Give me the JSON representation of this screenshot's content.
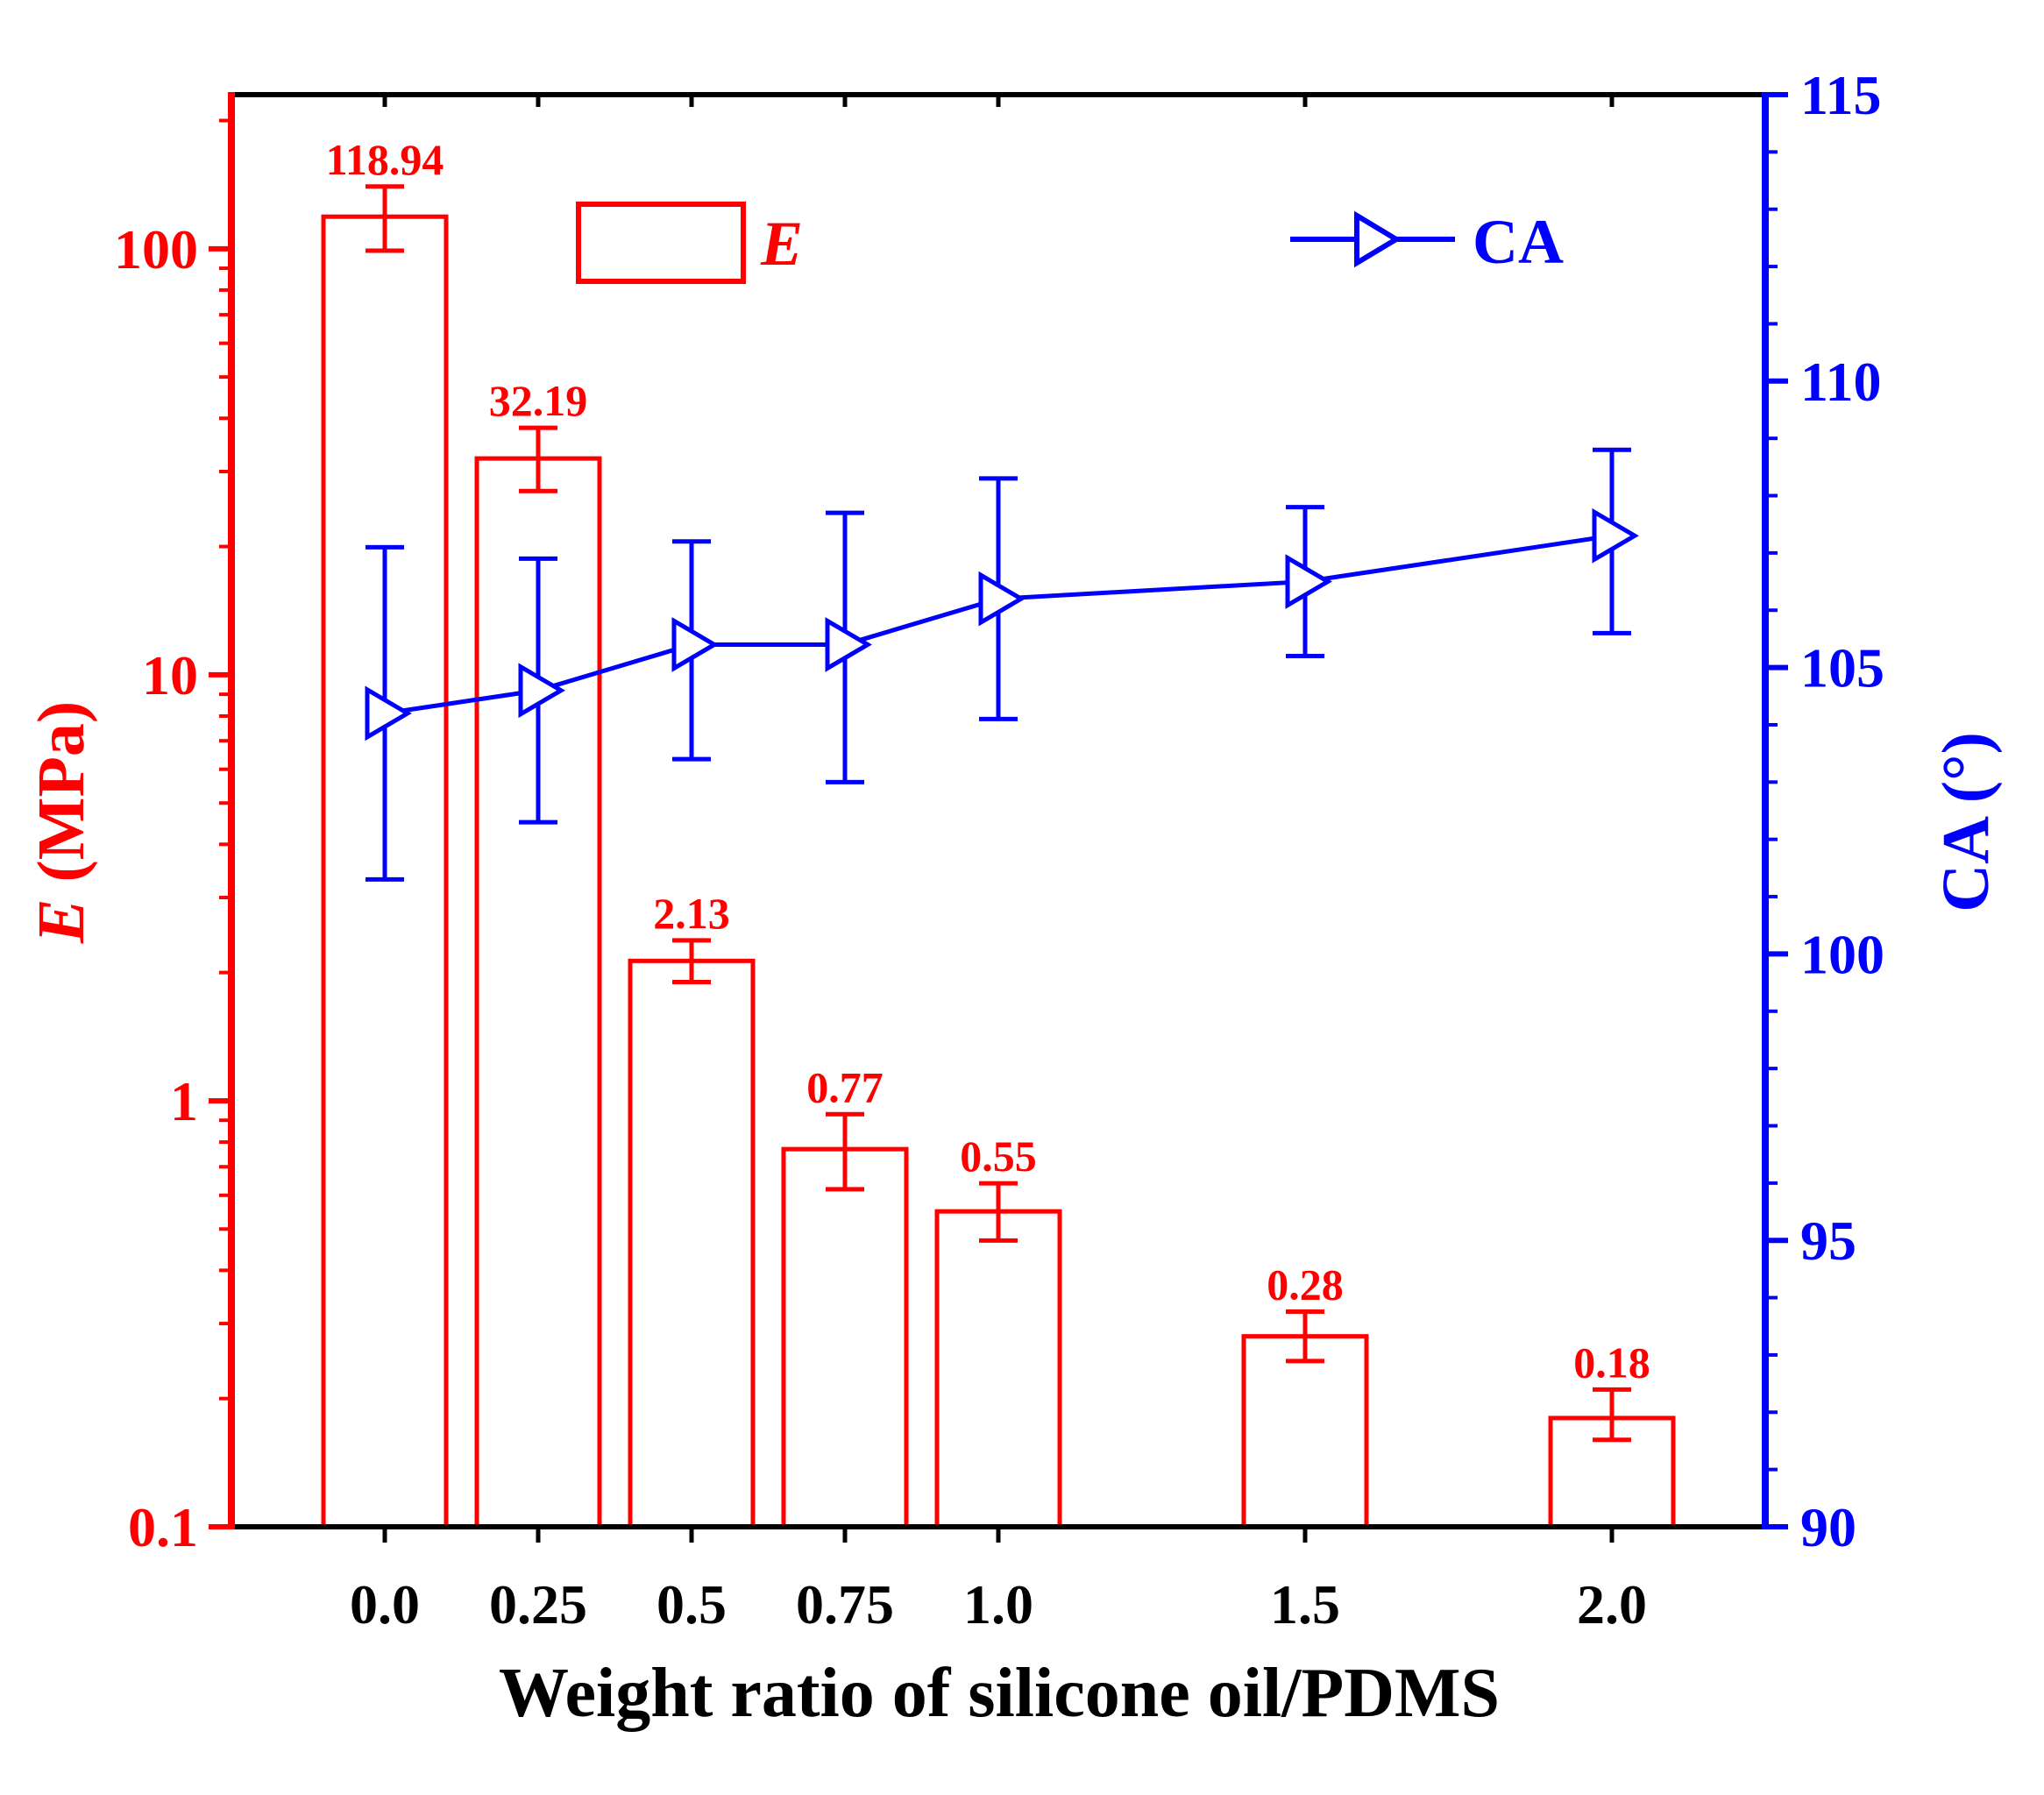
{
  "chart_data": {
    "type": "bar",
    "xlabel": "Weight ratio of silicone oil/PDMS",
    "categories": [
      "0.0",
      "0.25",
      "0.5",
      "0.75",
      "1.0",
      "1.5",
      "2.0"
    ],
    "x": [
      0.0,
      0.25,
      0.5,
      0.75,
      1.0,
      1.5,
      2.0
    ],
    "xlim": [
      -0.25,
      2.25
    ],
    "left_axis": {
      "label_italic": "E",
      "label_rest": " (MPa)",
      "scale": "log",
      "ylim": [
        0.1,
        230
      ],
      "ticks": [
        0.1,
        1,
        10,
        100
      ],
      "tick_labels": [
        "0.1",
        "1",
        "10",
        "100"
      ],
      "color": "#ff0000"
    },
    "right_axis": {
      "label": "CA (°)",
      "scale": "linear",
      "ylim": [
        90,
        115
      ],
      "ticks": [
        90,
        95,
        100,
        105,
        110,
        115
      ],
      "tick_labels": [
        "90",
        "95",
        "100",
        "105",
        "110",
        "115"
      ],
      "color": "#0000ff"
    },
    "series": [
      {
        "name": "E",
        "type": "bar",
        "axis": "left",
        "color": "#ff0000",
        "values": [
          118.94,
          32.19,
          2.13,
          0.77,
          0.55,
          0.28,
          0.18
        ],
        "error_low": [
          99,
          27,
          1.9,
          0.62,
          0.47,
          0.245,
          0.16
        ],
        "error_high": [
          140,
          38,
          2.38,
          0.93,
          0.64,
          0.32,
          0.21
        ],
        "data_labels": [
          "118.94",
          "32.19",
          "2.13",
          "0.77",
          "0.55",
          "0.28",
          "0.18"
        ]
      },
      {
        "name": "CA",
        "type": "line",
        "axis": "right",
        "color": "#0000ff",
        "values": [
          104.2,
          104.6,
          105.4,
          105.4,
          106.2,
          106.5,
          107.3
        ],
        "error_low": [
          101.3,
          102.3,
          103.4,
          103.0,
          104.1,
          105.2,
          105.6
        ],
        "error_high": [
          107.1,
          106.9,
          107.2,
          107.7,
          108.3,
          107.8,
          108.8
        ]
      }
    ],
    "legend": [
      {
        "label": "E",
        "symbol": "bar",
        "color": "#ff0000",
        "italic": true,
        "position": "top-center"
      },
      {
        "label": "CA",
        "symbol": "line-triangle",
        "color": "#0000ff",
        "italic": false,
        "position": "top-right"
      }
    ]
  }
}
